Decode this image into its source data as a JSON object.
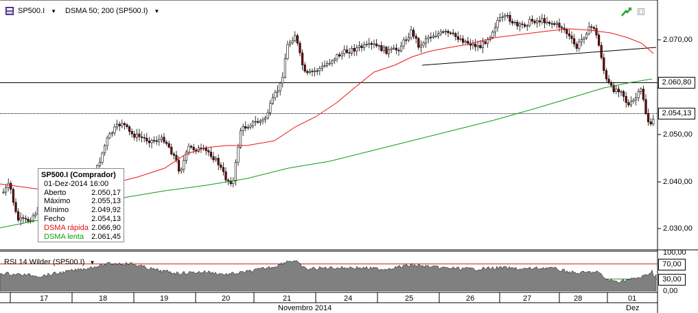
{
  "header": {
    "symbol_label": "SP500.I",
    "indicator_label": "DSMA 50; 200 (SP500.I)",
    "symbol_icon": "cfd-instrument-icon",
    "trend_icon": "green-arrow-icon",
    "dropdown_icon": "triangle-down-icon"
  },
  "price_axis": {
    "ticks": [
      "2.070,00",
      "2.060,00",
      "2.050,00",
      "2.040,00",
      "2.030,00"
    ],
    "boxed_levels": [
      "2.060,80",
      "2.054,13"
    ]
  },
  "rsi_panel": {
    "title": "RSI 14 Wilder (SP500.I)",
    "ticks_plain": [
      "100,00",
      "0,00"
    ],
    "ticks_boxed": [
      "70,00",
      "30,00"
    ],
    "overbought_color": "#cc2222",
    "oversold_color": "#22a022"
  },
  "time_axis": {
    "days": [
      "17",
      "18",
      "19",
      "20",
      "21",
      "24",
      "25",
      "26",
      "27",
      "28",
      "01"
    ],
    "months": [
      "Novembro 2014",
      "Dez"
    ]
  },
  "tooltip": {
    "title": "SP500.I (Comprador)",
    "datetime": "01-Dez-2014 16:00",
    "rows": [
      {
        "label": "Aberto",
        "value": "2.050,17"
      },
      {
        "label": "Máximo",
        "value": "2.055,13"
      },
      {
        "label": "Mínimo",
        "value": "2.049,92"
      },
      {
        "label": "Fecho",
        "value": "2.054,13"
      },
      {
        "label": "DSMA rápida",
        "value": "2.066,90"
      },
      {
        "label": "DSMA lenta",
        "value": "2.061,45"
      }
    ],
    "fast_color": "#e01010",
    "slow_color": "#10a010"
  },
  "colors": {
    "up_candle": "#ffffff",
    "down_candle": "#7a0000",
    "fast_ma": "#ee1111",
    "slow_ma": "#119911",
    "rsi_fill": "#808080"
  }
}
